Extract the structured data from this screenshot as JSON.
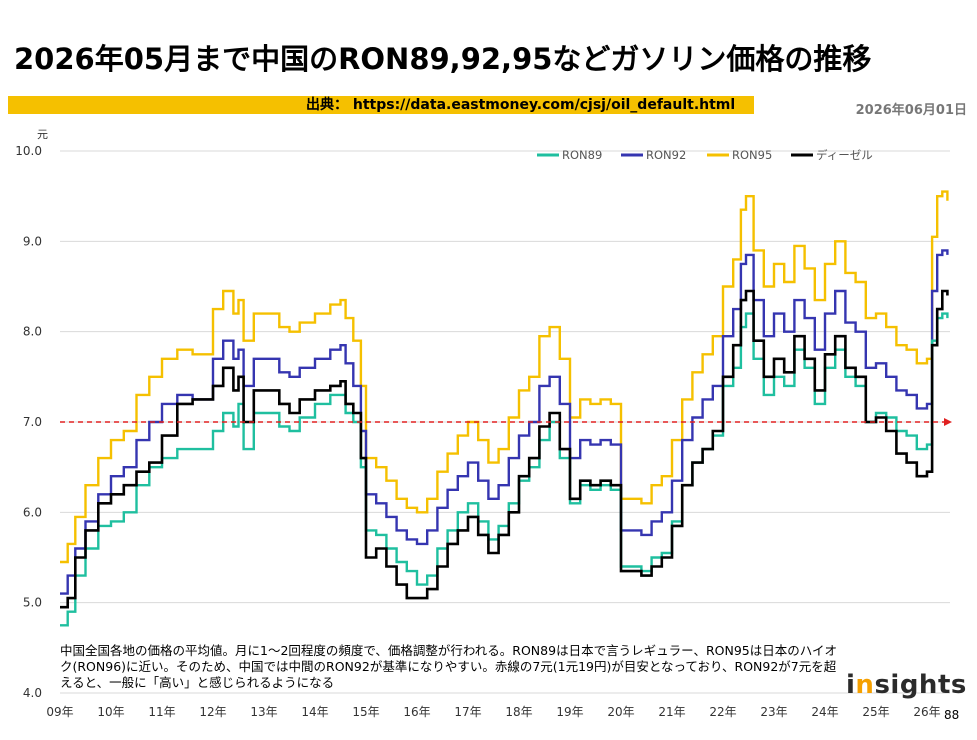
{
  "title": "2026年05月まで中国のRON89,92,95などガソリン価格の推移",
  "source": "出典： https://data.eastmoney.com/cjsj/oil_default.html",
  "date": "2026年06月01日",
  "note": "中国全国各地の価格の平均値。月に1～2回程度の頻度で、価格調整が行われる。RON89は日本で言うレギュラー、RON95は日本のハイオク(RON96)に近い。そのため、中国では中間のRON92が基準になりやすい。赤線の7元(1元19円)が目安となっており、RON92が7元を超えると、一般に「高い」と感じられるようになる",
  "logo": {
    "prefix": "i",
    "dot": "n",
    "rest": "sights"
  },
  "page_number": "88",
  "colors": {
    "ron89": "#1fbf9f",
    "ron92": "#3535b0",
    "ron95": "#f5c000",
    "diesel": "#000000",
    "reference": "#e02020"
  },
  "chart_data": {
    "type": "line",
    "title": "2026年05月まで中国のRON89,92,95などガソリン価格の推移",
    "ylabel": "元",
    "ylim": [
      4.0,
      10.0
    ],
    "yticks": [
      "4.0",
      "5.0",
      "6.0",
      "7.0",
      "8.0",
      "9.0",
      "10.0"
    ],
    "xlim": [
      2009.0,
      2026.45
    ],
    "xticks": [
      {
        "x": 2009,
        "label": "09年"
      },
      {
        "x": 2010,
        "label": "10年"
      },
      {
        "x": 2011,
        "label": "11年"
      },
      {
        "x": 2012,
        "label": "12年"
      },
      {
        "x": 2013,
        "label": "13年"
      },
      {
        "x": 2014,
        "label": "14年"
      },
      {
        "x": 2015,
        "label": "15年"
      },
      {
        "x": 2016,
        "label": "16年"
      },
      {
        "x": 2017,
        "label": "17年"
      },
      {
        "x": 2018,
        "label": "18年"
      },
      {
        "x": 2019,
        "label": "19年"
      },
      {
        "x": 2020,
        "label": "20年"
      },
      {
        "x": 2021,
        "label": "21年"
      },
      {
        "x": 2022,
        "label": "22年"
      },
      {
        "x": 2023,
        "label": "23年"
      },
      {
        "x": 2024,
        "label": "24年"
      },
      {
        "x": 2025,
        "label": "25年"
      },
      {
        "x": 2026,
        "label": "26年"
      }
    ],
    "grid": true,
    "legend_position": "top-right",
    "reference_line": {
      "y": 7.0
    },
    "x": [
      2009.0,
      2009.15,
      2009.3,
      2009.5,
      2009.75,
      2010.0,
      2010.25,
      2010.5,
      2010.75,
      2011.0,
      2011.3,
      2011.6,
      2012.0,
      2012.2,
      2012.4,
      2012.5,
      2012.6,
      2012.8,
      2013.0,
      2013.3,
      2013.5,
      2013.7,
      2014.0,
      2014.3,
      2014.5,
      2014.6,
      2014.75,
      2014.9,
      2015.0,
      2015.2,
      2015.4,
      2015.6,
      2015.8,
      2016.0,
      2016.2,
      2016.4,
      2016.6,
      2016.8,
      2017.0,
      2017.2,
      2017.4,
      2017.6,
      2017.8,
      2018.0,
      2018.2,
      2018.4,
      2018.6,
      2018.8,
      2019.0,
      2019.2,
      2019.4,
      2019.6,
      2019.8,
      2020.0,
      2020.2,
      2020.4,
      2020.6,
      2020.8,
      2021.0,
      2021.2,
      2021.4,
      2021.6,
      2021.8,
      2022.0,
      2022.2,
      2022.35,
      2022.45,
      2022.6,
      2022.8,
      2023.0,
      2023.2,
      2023.4,
      2023.6,
      2023.8,
      2024.0,
      2024.2,
      2024.4,
      2024.6,
      2024.8,
      2025.0,
      2025.2,
      2025.4,
      2025.6,
      2025.8,
      2026.0,
      2026.1,
      2026.2,
      2026.3,
      2026.4
    ],
    "series": [
      {
        "name": "RON89",
        "values": [
          4.75,
          4.9,
          5.3,
          5.6,
          5.85,
          5.9,
          6.0,
          6.3,
          6.5,
          6.6,
          6.7,
          6.7,
          6.9,
          7.1,
          6.95,
          7.2,
          6.7,
          7.1,
          7.1,
          6.95,
          6.9,
          7.05,
          7.2,
          7.3,
          7.3,
          7.1,
          7.0,
          6.5,
          5.8,
          5.75,
          5.6,
          5.45,
          5.35,
          5.2,
          5.3,
          5.6,
          5.8,
          6.0,
          6.1,
          5.9,
          5.7,
          5.85,
          6.1,
          6.35,
          6.5,
          6.8,
          7.0,
          6.6,
          6.1,
          6.3,
          6.25,
          6.3,
          6.25,
          5.4,
          5.4,
          5.35,
          5.5,
          5.55,
          5.9,
          6.3,
          6.55,
          6.7,
          6.85,
          7.4,
          7.6,
          8.05,
          8.2,
          7.7,
          7.3,
          7.5,
          7.4,
          7.8,
          7.6,
          7.2,
          7.6,
          7.8,
          7.5,
          7.4,
          7.0,
          7.1,
          7.05,
          6.9,
          6.85,
          6.7,
          6.75,
          7.9,
          8.15,
          8.2,
          8.15
        ]
      },
      {
        "name": "RON92",
        "values": [
          5.1,
          5.3,
          5.6,
          5.9,
          6.2,
          6.4,
          6.5,
          6.8,
          7.0,
          7.2,
          7.3,
          7.25,
          7.7,
          7.9,
          7.7,
          7.8,
          7.4,
          7.7,
          7.7,
          7.55,
          7.5,
          7.6,
          7.7,
          7.8,
          7.85,
          7.65,
          7.4,
          6.9,
          6.2,
          6.1,
          5.95,
          5.8,
          5.7,
          5.65,
          5.8,
          6.05,
          6.25,
          6.4,
          6.55,
          6.35,
          6.15,
          6.3,
          6.6,
          6.85,
          7.0,
          7.4,
          7.5,
          7.2,
          6.6,
          6.8,
          6.75,
          6.8,
          6.75,
          5.8,
          5.8,
          5.75,
          5.9,
          6.0,
          6.35,
          6.8,
          7.05,
          7.25,
          7.4,
          7.95,
          8.25,
          8.75,
          8.85,
          8.35,
          7.95,
          8.2,
          8.0,
          8.35,
          8.15,
          7.8,
          8.2,
          8.45,
          8.1,
          8.0,
          7.6,
          7.65,
          7.5,
          7.35,
          7.3,
          7.15,
          7.2,
          8.45,
          8.85,
          8.9,
          8.85
        ]
      },
      {
        "name": "RON95",
        "values": [
          5.45,
          5.65,
          5.95,
          6.3,
          6.6,
          6.8,
          6.9,
          7.3,
          7.5,
          7.7,
          7.8,
          7.75,
          8.25,
          8.45,
          8.2,
          8.35,
          7.9,
          8.2,
          8.2,
          8.05,
          8.0,
          8.1,
          8.2,
          8.3,
          8.35,
          8.15,
          7.9,
          7.4,
          6.6,
          6.5,
          6.35,
          6.15,
          6.05,
          6.0,
          6.15,
          6.45,
          6.65,
          6.85,
          7.0,
          6.8,
          6.55,
          6.7,
          7.05,
          7.35,
          7.5,
          7.95,
          8.05,
          7.7,
          7.05,
          7.25,
          7.2,
          7.25,
          7.2,
          6.15,
          6.15,
          6.1,
          6.3,
          6.4,
          6.8,
          7.25,
          7.55,
          7.75,
          7.95,
          8.5,
          8.8,
          9.35,
          9.5,
          8.9,
          8.5,
          8.75,
          8.55,
          8.95,
          8.7,
          8.35,
          8.75,
          9.0,
          8.65,
          8.55,
          8.15,
          8.2,
          8.05,
          7.85,
          7.8,
          7.65,
          7.7,
          9.05,
          9.5,
          9.55,
          9.45
        ]
      },
      {
        "name": "ディーゼル",
        "values": [
          4.95,
          5.05,
          5.5,
          5.8,
          6.1,
          6.2,
          6.3,
          6.45,
          6.55,
          6.85,
          7.2,
          7.25,
          7.4,
          7.6,
          7.35,
          7.5,
          7.0,
          7.35,
          7.35,
          7.2,
          7.1,
          7.25,
          7.35,
          7.4,
          7.45,
          7.2,
          7.1,
          6.6,
          5.5,
          5.6,
          5.4,
          5.2,
          5.05,
          5.05,
          5.15,
          5.4,
          5.65,
          5.8,
          5.95,
          5.75,
          5.55,
          5.75,
          6.0,
          6.4,
          6.6,
          6.95,
          7.1,
          6.7,
          6.15,
          6.35,
          6.3,
          6.35,
          6.3,
          5.35,
          5.35,
          5.3,
          5.4,
          5.5,
          5.85,
          6.3,
          6.55,
          6.7,
          6.9,
          7.5,
          7.85,
          8.35,
          8.45,
          7.9,
          7.5,
          7.7,
          7.55,
          7.95,
          7.7,
          7.35,
          7.75,
          7.95,
          7.6,
          7.5,
          7.0,
          7.05,
          6.9,
          6.65,
          6.55,
          6.4,
          6.45,
          7.85,
          8.25,
          8.45,
          8.4
        ]
      }
    ]
  }
}
